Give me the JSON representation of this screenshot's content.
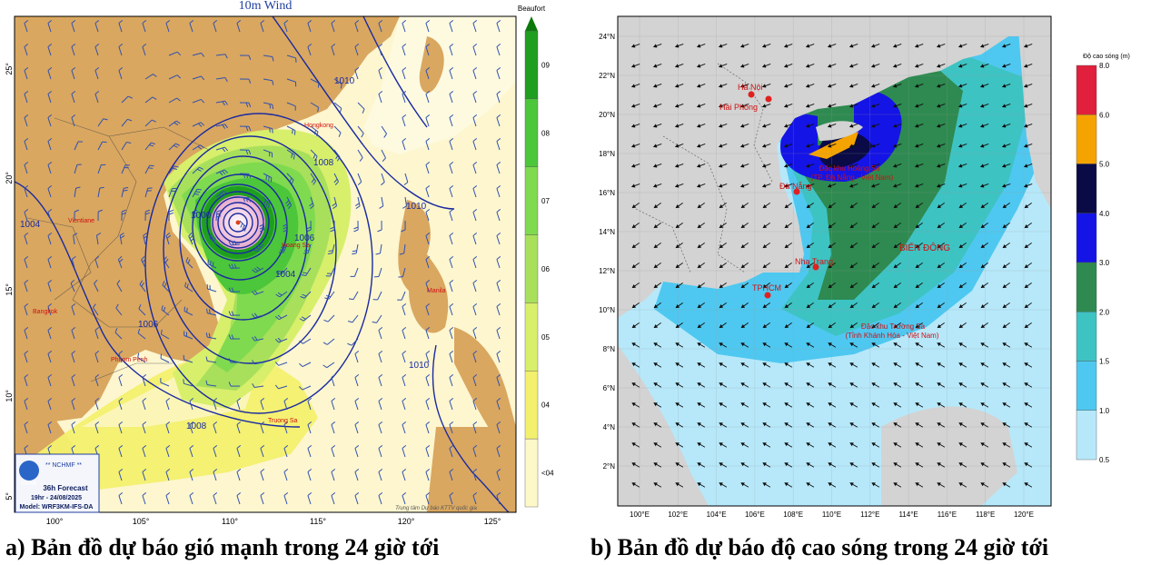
{
  "map_a": {
    "title": "10m Wind",
    "legend_title": "Beaufort",
    "legend_levels": [
      "09",
      "08",
      "07",
      "06",
      "05",
      "04",
      "<04"
    ],
    "legend_colors": [
      "#1f9e1f",
      "#4cc63a",
      "#7fda4f",
      "#a8e05b",
      "#d8ef6b",
      "#f3f06e",
      "#fdf8c8"
    ],
    "lon_ticks": [
      "100°",
      "105°",
      "110°",
      "115°",
      "120°",
      "125°"
    ],
    "lat_ticks": [
      "25°",
      "20°",
      "15°",
      "10°",
      "5°"
    ],
    "isobars": [
      "1010",
      "1008",
      "1006",
      "1004",
      "1000",
      "1010",
      "1008",
      "1006",
      "1004",
      "1010"
    ],
    "places": [
      "Hongkong",
      "Vientiane",
      "Bangkok",
      "Phnom Penh",
      "Hoang Sa",
      "Truong Sa",
      "Manila"
    ],
    "info_box": {
      "org": "** NCHMF **",
      "logo_text": "NCHMF",
      "forecast": "36h Forecast",
      "time": "19hr - 24/08/2025",
      "model": "Model: WRF3KM-IFS-DA"
    },
    "credit": "Trung tâm Dự báo KTTV quốc gia",
    "caption": "a) Bản đồ dự báo gió mạnh trong 24 giờ tới"
  },
  "map_b": {
    "legend_title": "Độ cao sóng (m)",
    "legend_levels": [
      "8.0",
      "6.0",
      "5.0",
      "4.0",
      "3.0",
      "2.0",
      "1.5",
      "1.0",
      "0.5"
    ],
    "legend_colors": [
      "#e0203c",
      "#f5a300",
      "#0a0a46",
      "#1414e6",
      "#2e8a50",
      "#3ec3c3",
      "#4ec8f0",
      "#b6e8fa"
    ],
    "lon_ticks": [
      "100°E",
      "102°E",
      "104°E",
      "106°E",
      "108°E",
      "110°E",
      "112°E",
      "114°E",
      "116°E",
      "118°E",
      "120°E"
    ],
    "lat_ticks": [
      "24°N",
      "22°N",
      "20°N",
      "18°N",
      "16°N",
      "14°N",
      "12°N",
      "10°N",
      "8°N",
      "6°N",
      "4°N",
      "2°N"
    ],
    "places": [
      "Hà Nội",
      "Hải Phòng",
      "Đà Nẵng",
      "Nha Trang",
      "TPHCM"
    ],
    "hoang_sa": "Đặc khu Hoàng Sa",
    "hoang_sa_sub": "(TP. Đà Nẵng - Việt Nam)",
    "bien_dong": "BIỂN ĐÔNG",
    "truong_sa": "Đặc khu Trường Sa",
    "truong_sa_sub": "(Tỉnh Khánh Hòa - Việt Nam)",
    "caption": "b) Bản đồ dự báo độ cao sóng trong 24 giờ tới"
  }
}
